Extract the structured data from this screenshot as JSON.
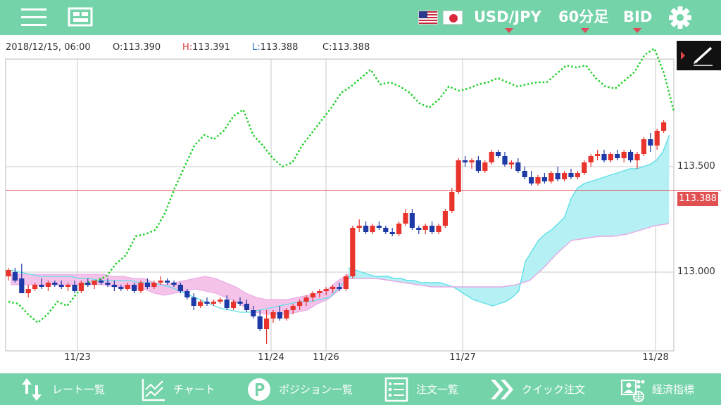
{
  "header": {
    "pair": "USD/JPY",
    "timeframe": "60分足",
    "price_type": "BID",
    "colors": {
      "bar": "#74d3a9",
      "caret": "#e0485b"
    }
  },
  "ohlc": {
    "datetime": "2018/12/15, 06:00",
    "open_label": "O:",
    "open": "113.390",
    "high_label": "H:",
    "high": "113.391",
    "low_label": "L:",
    "low": "113.388",
    "close_label": "C:",
    "close": "113.388"
  },
  "chart_data": {
    "type": "candlestick",
    "y_ticks": [
      "113.500",
      "113.000"
    ],
    "x_ticks": [
      "11/23",
      "11/24",
      "11/26",
      "11/27",
      "11/28"
    ],
    "current_price": "113.388",
    "colors": {
      "up": "#e8342c",
      "down": "#1d3aa6",
      "cloud_upper": "#5fe0e8",
      "cloud_fill": "#b4f0f4",
      "cloud_bear": "#f5c2ea",
      "chikou": "#22d02a",
      "current_line": "#e05050"
    },
    "candles": [
      [
        112.98,
        113.02,
        112.96,
        113.01
      ],
      [
        113.0,
        113.02,
        112.95,
        112.96
      ],
      [
        112.97,
        113.04,
        112.9,
        112.9
      ],
      [
        112.9,
        112.94,
        112.88,
        112.92
      ],
      [
        112.92,
        112.95,
        112.91,
        112.94
      ],
      [
        112.94,
        112.97,
        112.92,
        112.93
      ],
      [
        112.93,
        112.96,
        112.91,
        112.95
      ],
      [
        112.95,
        112.96,
        112.93,
        112.94
      ],
      [
        112.94,
        112.96,
        112.92,
        112.93
      ],
      [
        112.93,
        112.95,
        112.91,
        112.94
      ],
      [
        112.94,
        112.96,
        112.9,
        112.91
      ],
      [
        112.91,
        112.96,
        112.9,
        112.95
      ],
      [
        112.95,
        112.97,
        112.93,
        112.94
      ],
      [
        112.94,
        112.96,
        112.92,
        112.96
      ],
      [
        112.96,
        112.97,
        112.94,
        112.95
      ],
      [
        112.95,
        112.97,
        112.93,
        112.94
      ],
      [
        112.94,
        112.96,
        112.91,
        112.93
      ],
      [
        112.93,
        112.94,
        112.91,
        112.92
      ],
      [
        112.92,
        112.95,
        112.91,
        112.94
      ],
      [
        112.94,
        112.95,
        112.9,
        112.91
      ],
      [
        112.91,
        112.96,
        112.9,
        112.95
      ],
      [
        112.95,
        112.97,
        112.92,
        112.93
      ],
      [
        112.93,
        112.96,
        112.92,
        112.95
      ],
      [
        112.95,
        112.98,
        112.94,
        112.96
      ],
      [
        112.96,
        112.97,
        112.94,
        112.95
      ],
      [
        112.95,
        112.96,
        112.93,
        112.94
      ],
      [
        112.94,
        112.95,
        112.9,
        112.91
      ],
      [
        112.91,
        112.92,
        112.87,
        112.88
      ],
      [
        112.88,
        112.9,
        112.82,
        112.84
      ],
      [
        112.84,
        112.87,
        112.83,
        112.86
      ],
      [
        112.86,
        112.88,
        112.84,
        112.85
      ],
      [
        112.85,
        112.87,
        112.84,
        112.86
      ],
      [
        112.86,
        112.88,
        112.85,
        112.87
      ],
      [
        112.87,
        112.89,
        112.82,
        112.83
      ],
      [
        112.83,
        112.87,
        112.82,
        112.86
      ],
      [
        112.86,
        112.88,
        112.84,
        112.85
      ],
      [
        112.85,
        112.87,
        112.81,
        112.82
      ],
      [
        112.82,
        112.84,
        112.78,
        112.79
      ],
      [
        112.79,
        112.82,
        112.72,
        112.73
      ],
      [
        112.73,
        112.82,
        112.66,
        112.78
      ],
      [
        112.78,
        112.82,
        112.76,
        112.81
      ],
      [
        112.81,
        112.84,
        112.77,
        112.78
      ],
      [
        112.78,
        112.83,
        112.77,
        112.82
      ],
      [
        112.82,
        112.85,
        112.8,
        112.84
      ],
      [
        112.84,
        112.87,
        112.82,
        112.86
      ],
      [
        112.86,
        112.89,
        112.84,
        112.88
      ],
      [
        112.88,
        112.91,
        112.86,
        112.9
      ],
      [
        112.9,
        112.92,
        112.88,
        112.91
      ],
      [
        112.91,
        112.93,
        112.89,
        112.92
      ],
      [
        112.92,
        112.94,
        112.9,
        112.93
      ],
      [
        112.93,
        112.95,
        112.91,
        112.92
      ],
      [
        112.92,
        112.99,
        112.91,
        112.98
      ],
      [
        112.98,
        113.22,
        112.97,
        113.21
      ],
      [
        113.21,
        113.25,
        113.19,
        113.22
      ],
      [
        113.22,
        113.24,
        113.18,
        113.19
      ],
      [
        113.19,
        113.23,
        113.18,
        113.22
      ],
      [
        113.22,
        113.24,
        113.2,
        113.21
      ],
      [
        113.21,
        113.22,
        113.18,
        113.19
      ],
      [
        113.19,
        113.21,
        113.17,
        113.18
      ],
      [
        113.18,
        113.24,
        113.17,
        113.23
      ],
      [
        113.23,
        113.3,
        113.22,
        113.28
      ],
      [
        113.28,
        113.3,
        113.2,
        113.21
      ],
      [
        113.21,
        113.22,
        113.18,
        113.2
      ],
      [
        113.2,
        113.23,
        113.18,
        113.22
      ],
      [
        113.22,
        113.24,
        113.18,
        113.19
      ],
      [
        113.19,
        113.23,
        113.18,
        113.22
      ],
      [
        113.22,
        113.3,
        113.21,
        113.29
      ],
      [
        113.29,
        113.4,
        113.28,
        113.38
      ],
      [
        113.38,
        113.54,
        113.37,
        113.53
      ],
      [
        113.53,
        113.55,
        113.5,
        113.52
      ],
      [
        113.52,
        113.54,
        113.49,
        113.53
      ],
      [
        113.53,
        113.55,
        113.47,
        113.48
      ],
      [
        113.48,
        113.53,
        113.47,
        113.52
      ],
      [
        113.52,
        113.58,
        113.51,
        113.57
      ],
      [
        113.57,
        113.58,
        113.54,
        113.55
      ],
      [
        113.55,
        113.57,
        113.5,
        113.51
      ],
      [
        113.51,
        113.53,
        113.49,
        113.52
      ],
      [
        113.52,
        113.54,
        113.47,
        113.48
      ],
      [
        113.48,
        113.5,
        113.44,
        113.45
      ],
      [
        113.45,
        113.48,
        113.41,
        113.42
      ],
      [
        113.42,
        113.46,
        113.41,
        113.45
      ],
      [
        113.45,
        113.47,
        113.42,
        113.43
      ],
      [
        113.43,
        113.48,
        113.42,
        113.47
      ],
      [
        113.47,
        113.5,
        113.43,
        113.44
      ],
      [
        113.44,
        113.48,
        113.43,
        113.47
      ],
      [
        113.47,
        113.49,
        113.44,
        113.45
      ],
      [
        113.45,
        113.48,
        113.44,
        113.47
      ],
      [
        113.47,
        113.53,
        113.46,
        113.52
      ],
      [
        113.52,
        113.56,
        113.5,
        113.55
      ],
      [
        113.55,
        113.58,
        113.53,
        113.56
      ],
      [
        113.56,
        113.58,
        113.52,
        113.53
      ],
      [
        113.53,
        113.57,
        113.52,
        113.56
      ],
      [
        113.56,
        113.58,
        113.53,
        113.54
      ],
      [
        113.54,
        113.58,
        113.52,
        113.57
      ],
      [
        113.57,
        113.58,
        113.52,
        113.53
      ],
      [
        113.53,
        113.57,
        113.49,
        113.56
      ],
      [
        113.56,
        113.64,
        113.55,
        113.63
      ],
      [
        113.63,
        113.66,
        113.57,
        113.6
      ],
      [
        113.6,
        113.68,
        113.58,
        113.67
      ],
      [
        113.67,
        113.72,
        113.66,
        113.71
      ]
    ],
    "kijun": [
      113.02,
      113.01,
      113.0,
      112.99,
      112.98,
      112.98,
      112.98,
      112.97,
      112.97,
      112.96,
      112.96,
      112.95,
      112.95,
      112.95,
      112.95,
      112.94,
      112.93,
      112.91,
      112.89,
      112.87,
      112.86,
      112.85,
      112.84,
      112.85,
      112.86,
      112.88,
      112.91,
      113.05,
      113.1,
      113.15,
      113.18,
      113.2,
      113.23,
      113.26,
      113.35,
      113.4,
      113.42,
      113.43,
      113.44,
      113.45,
      113.46,
      113.47,
      113.48,
      113.49,
      113.49,
      113.5,
      113.51,
      113.53,
      113.57,
      113.65
    ],
    "cloud_lower": [
      112.97,
      112.97,
      112.97,
      112.96,
      112.95,
      112.94,
      112.93,
      112.93,
      112.93,
      112.93,
      112.93,
      112.93,
      112.94,
      112.96,
      113.02,
      113.09,
      113.15,
      113.16,
      113.17,
      113.17,
      113.18,
      113.2,
      113.22,
      113.23
    ],
    "chikou": [
      112.86,
      112.85,
      112.8,
      112.76,
      112.8,
      112.86,
      112.84,
      112.9,
      112.95,
      112.96,
      112.98,
      113.04,
      113.08,
      113.17,
      113.18,
      113.2,
      113.28,
      113.4,
      113.5,
      113.6,
      113.65,
      113.63,
      113.67,
      113.74,
      113.77,
      113.65,
      113.6,
      113.54,
      113.5,
      113.52,
      113.6,
      113.66,
      113.72,
      113.78,
      113.85,
      113.88,
      113.92,
      113.96,
      113.89,
      113.9,
      113.88,
      113.85,
      113.8,
      113.78,
      113.82,
      113.88,
      113.86,
      113.87,
      113.89,
      113.9,
      113.92,
      113.9,
      113.88,
      113.89,
      113.9,
      113.9,
      113.94,
      113.98,
      113.97,
      113.98,
      113.92,
      113.88,
      113.87,
      113.91,
      113.95,
      114.03,
      114.06,
      113.94,
      113.76
    ]
  },
  "pen_tool": {
    "icon": "pen-icon"
  },
  "bottom_nav": [
    {
      "label": "レート一覧",
      "icon": "sort-arrows-icon"
    },
    {
      "label": "チャート",
      "icon": "line-chart-icon"
    },
    {
      "label": "ポジション一覧",
      "icon": "position-p-icon"
    },
    {
      "label": "注文一覧",
      "icon": "order-list-icon"
    },
    {
      "label": "クイック注文",
      "icon": "fast-forward-icon"
    },
    {
      "label": "経済指標",
      "icon": "economic-indicator-icon"
    }
  ]
}
